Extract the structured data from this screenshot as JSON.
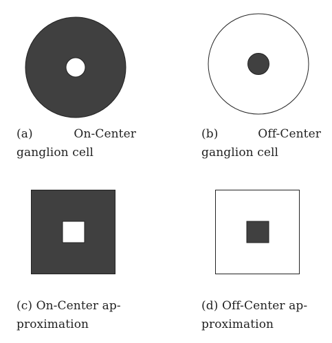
{
  "colors": {
    "dark": "#404040",
    "light": "#ffffff",
    "stroke": "#222222"
  },
  "panels": [
    {
      "id": "a",
      "shape": "circle",
      "surround_fill": "dark",
      "center_fill": "light",
      "caption_label": "(a)",
      "caption_title": "On-Center",
      "caption_line2": "ganglion cell"
    },
    {
      "id": "b",
      "shape": "circle",
      "surround_fill": "light",
      "center_fill": "dark",
      "caption_label": "(b)",
      "caption_title": "Off-Center",
      "caption_line2": "ganglion cell"
    },
    {
      "id": "c",
      "shape": "square",
      "surround_fill": "dark",
      "center_fill": "light",
      "caption_line1": "(c) On-Center ap-",
      "caption_line2": "proximation"
    },
    {
      "id": "d",
      "shape": "square",
      "surround_fill": "light",
      "center_fill": "dark",
      "caption_line1": "(d) Off-Center ap-",
      "caption_line2": "proximation"
    }
  ]
}
